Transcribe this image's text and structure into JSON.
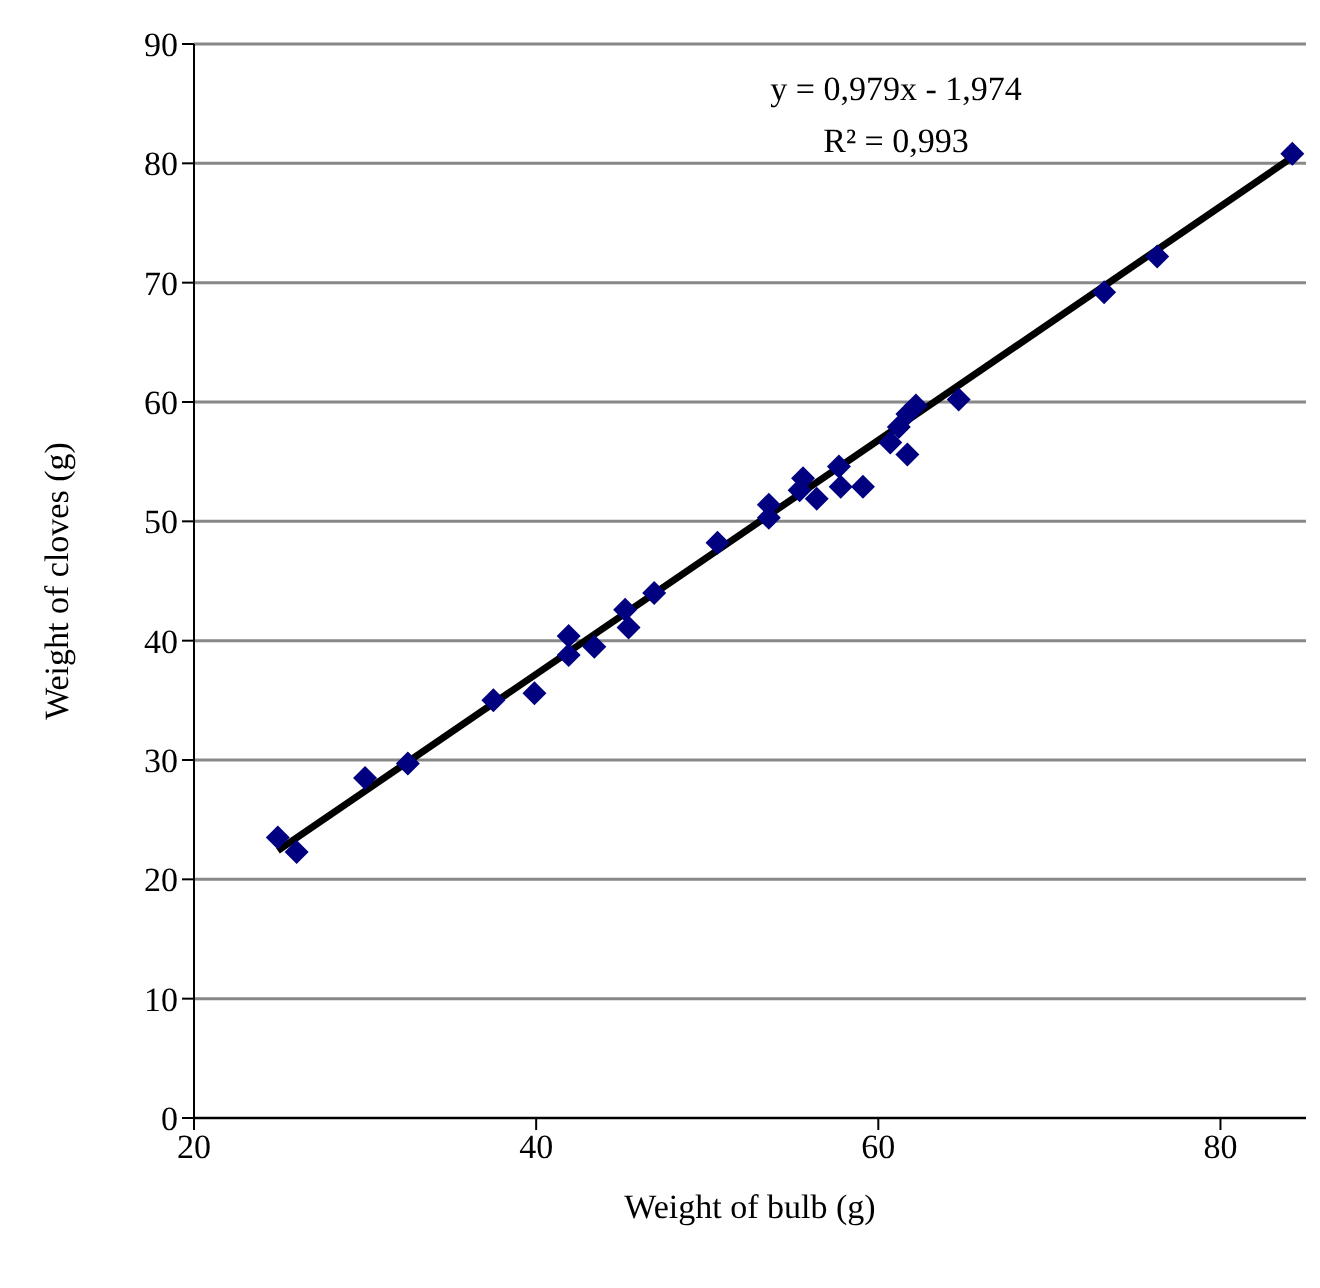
{
  "chart_data": {
    "type": "scatter",
    "xlabel": "Weight of bulb (g)",
    "ylabel": "Weight of cloves (g)",
    "annotations": [
      "y = 0,979x - 1,974",
      "R² = 0,993"
    ],
    "series": [
      {
        "color": "#000080",
        "marker": "diamond",
        "x": [
          24.9,
          26.0,
          30.0,
          32.5,
          37.5,
          39.9,
          41.9,
          41.9,
          43.4,
          45.2,
          45.4,
          46.9,
          50.6,
          53.6,
          53.6,
          55.6,
          55.4,
          56.4,
          57.7,
          57.8,
          59.1,
          60.7,
          61.2,
          62.2,
          61.7,
          61.7,
          64.7,
          73.2,
          76.3,
          84.2
        ],
        "values": [
          23.5,
          22.3,
          28.5,
          29.7,
          35.0,
          35.6,
          40.4,
          38.8,
          39.5,
          42.6,
          41.1,
          44.0,
          48.2,
          51.4,
          50.3,
          53.6,
          52.6,
          51.9,
          54.6,
          52.9,
          52.9,
          56.6,
          57.9,
          59.7,
          59.0,
          55.6,
          60.2,
          69.2,
          72.2,
          80.8
        ]
      },
      {
        "type": "line",
        "color": "#000000",
        "marker": "none",
        "line_style": "solid",
        "x": [
          24.9,
          84.4
        ],
        "values": [
          22.4,
          80.7
        ]
      }
    ],
    "xlim": [
      20,
      85
    ],
    "xticks": [
      20,
      40,
      60,
      80
    ],
    "ylim": [
      0,
      90
    ],
    "yticks": [
      0,
      10,
      20,
      30,
      40,
      50,
      60,
      70,
      80,
      90
    ],
    "grid": "y",
    "legend": false
  }
}
